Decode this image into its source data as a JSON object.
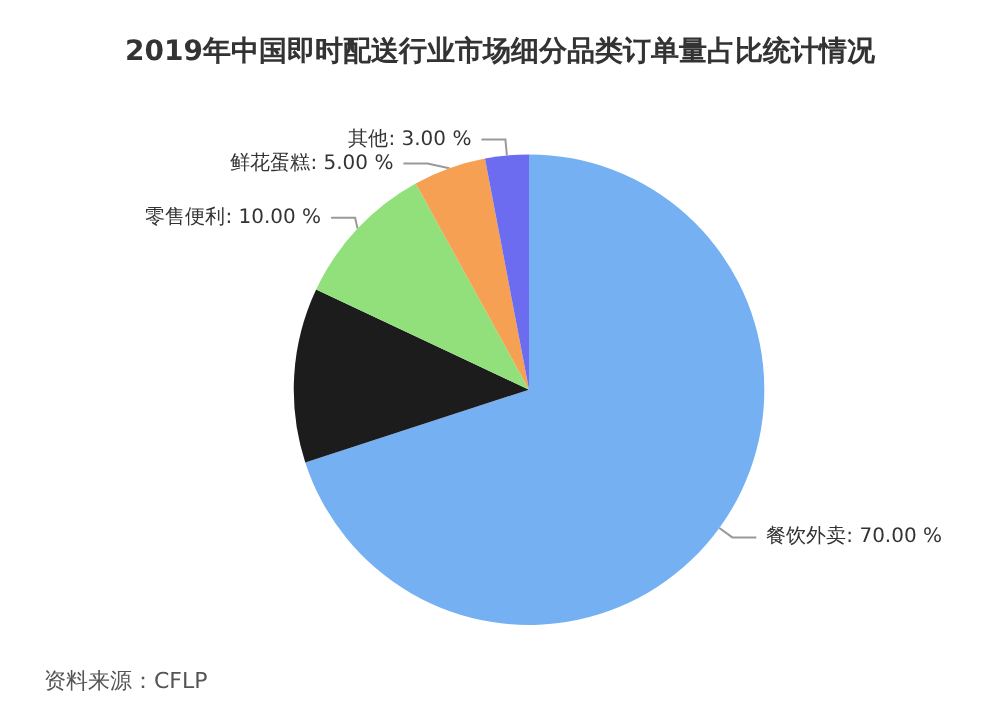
{
  "chart_data": {
    "type": "pie",
    "title": "2019年中国即时配送行业市场细分品类订单量占比统计情况",
    "categories": [
      "餐饮外卖",
      null,
      "零售便利",
      "鲜花蛋糕",
      "其他"
    ],
    "values": [
      70,
      12,
      10,
      5,
      3
    ],
    "value_labels": [
      "70.00 %",
      null,
      "10.00 %",
      "5.00 %",
      "3.00 %"
    ],
    "colors": [
      "#74b0f2",
      "#1c1c1c",
      "#92e07c",
      "#f5a052",
      "#6b6cf0"
    ],
    "annotations": [
      "资料来源：CFLP"
    ],
    "legend": false
  }
}
